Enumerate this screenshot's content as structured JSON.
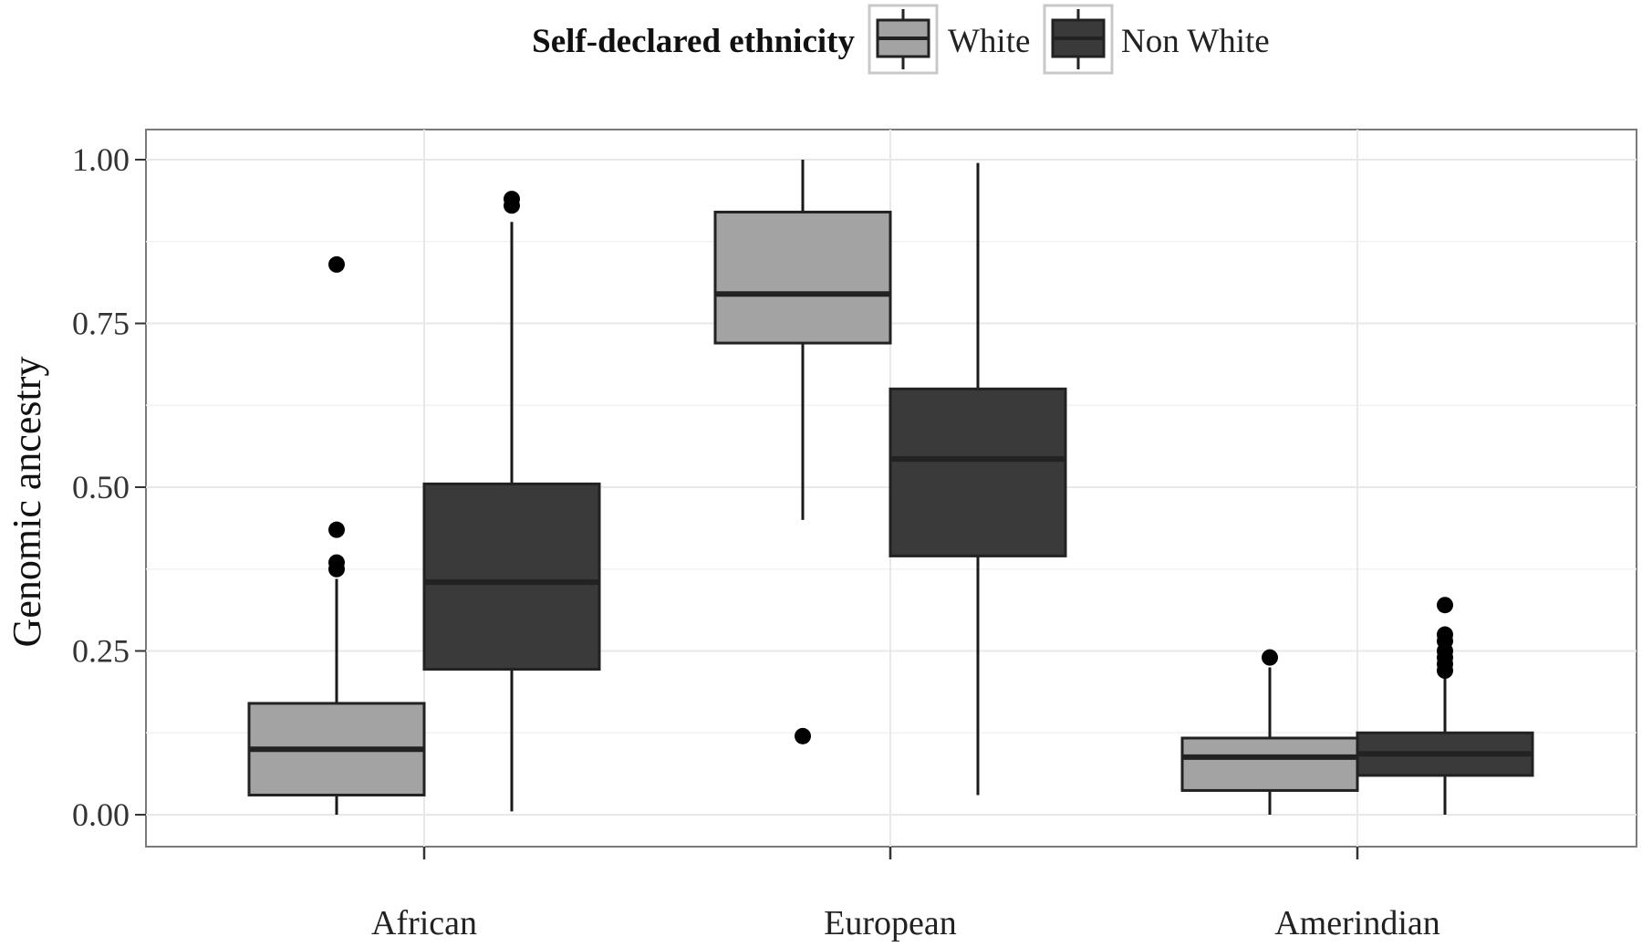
{
  "chart_data": {
    "type": "boxplot",
    "title": "",
    "xlabel": "",
    "ylabel": "Genomic ancestry",
    "ylim": [
      -0.05,
      1.05
    ],
    "yticks": [
      "0.00",
      "0.25",
      "0.50",
      "0.75",
      "1.00"
    ],
    "categories": [
      "African",
      "European",
      "Amerindian"
    ],
    "grid": true,
    "legend": {
      "title": "Self-declared ethnicity",
      "placement": "top",
      "entries": [
        "White",
        "Non White"
      ]
    },
    "series": [
      {
        "name": "White",
        "color": "#a3a3a3",
        "boxes": [
          {
            "category": "African",
            "whisker_low": 0.0,
            "q1": 0.03,
            "median": 0.1,
            "q3": 0.17,
            "whisker_high": 0.36,
            "outliers": [
              0.375,
              0.385,
              0.435,
              0.84
            ]
          },
          {
            "category": "European",
            "whisker_low": 0.45,
            "q1": 0.72,
            "median": 0.795,
            "q3": 0.92,
            "whisker_high": 1.0,
            "outliers": [
              0.12
            ]
          },
          {
            "category": "Amerindian",
            "whisker_low": 0.0,
            "q1": 0.037,
            "median": 0.088,
            "q3": 0.117,
            "whisker_high": 0.225,
            "outliers": [
              0.24
            ]
          }
        ]
      },
      {
        "name": "Non White",
        "color": "#3a3a3a",
        "boxes": [
          {
            "category": "African",
            "whisker_low": 0.005,
            "q1": 0.222,
            "median": 0.355,
            "q3": 0.505,
            "whisker_high": 0.905,
            "outliers": [
              0.93,
              0.94
            ]
          },
          {
            "category": "European",
            "whisker_low": 0.03,
            "q1": 0.395,
            "median": 0.543,
            "q3": 0.65,
            "whisker_high": 0.995,
            "outliers": []
          },
          {
            "category": "Amerindian",
            "whisker_low": 0.0,
            "q1": 0.06,
            "median": 0.093,
            "q3": 0.125,
            "whisker_high": 0.21,
            "outliers": [
              0.22,
              0.23,
              0.24,
              0.25,
              0.265,
              0.275,
              0.32
            ]
          }
        ]
      }
    ]
  }
}
